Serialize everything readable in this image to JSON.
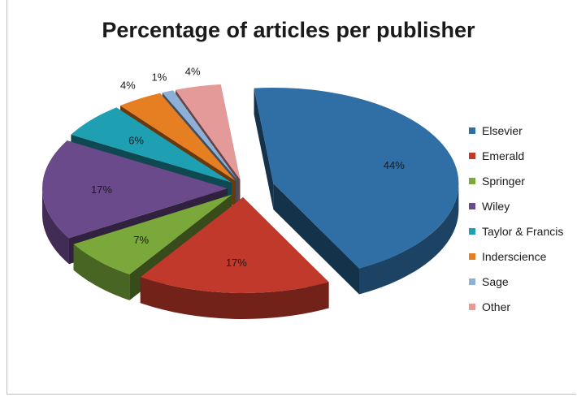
{
  "chart_data": {
    "type": "pie",
    "title": "Percentage of articles per publisher",
    "legend_position": "right",
    "slices": [
      {
        "name": "Elsevier",
        "value": 44,
        "label": "44%",
        "color": "#2f6fa6"
      },
      {
        "name": "Emerald",
        "value": 17,
        "label": "17%",
        "color": "#c0392b"
      },
      {
        "name": "Springer",
        "value": 7,
        "label": "7%",
        "color": "#7aa83a"
      },
      {
        "name": "Wiley",
        "value": 17,
        "label": "17%",
        "color": "#6b4a8c"
      },
      {
        "name": "Taylor & Francis",
        "value": 6,
        "label": "6%",
        "color": "#1f9fb2"
      },
      {
        "name": "Inderscience",
        "value": 4,
        "label": "4%",
        "color": "#e67e22"
      },
      {
        "name": "Sage",
        "value": 1,
        "label": "1%",
        "color": "#8fb0d6"
      },
      {
        "name": "Other",
        "value": 4,
        "label": "4%",
        "color": "#e59a9a"
      }
    ]
  }
}
